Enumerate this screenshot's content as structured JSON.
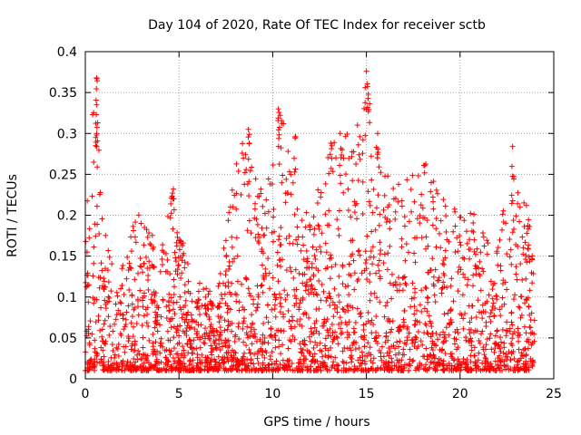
{
  "chart_data": {
    "type": "scatter",
    "title": "Day 104 of 2020, Rate Of TEC Index for receiver sctb",
    "xlabel": "GPS time / hours",
    "ylabel": "ROTI / TECUs",
    "xlim": [
      0,
      25
    ],
    "ylim": [
      0,
      0.4
    ],
    "xticks": [
      0,
      5,
      10,
      15,
      20,
      25
    ],
    "yticks": [
      0,
      0.05,
      0.1,
      0.15,
      0.2,
      0.25,
      0.3,
      0.35,
      0.4
    ],
    "xtick_labels": [
      "0",
      "5",
      "10",
      "15",
      "20",
      "25"
    ],
    "ytick_labels": [
      "0",
      "0.05",
      "0.1",
      "0.15",
      "0.2",
      "0.25",
      "0.3",
      "0.35",
      "0.4"
    ],
    "grid": true,
    "marker": "plus",
    "colors": {
      "series": "#ff0000",
      "grid": "#a0a0a0"
    },
    "series": [
      {
        "values_description": "dense ROTI samples per satellite, approx range",
        "x_range": [
          0,
          24
        ],
        "envelope": [
          {
            "x": 0.0,
            "y_low": 0.01,
            "y_high": 0.18
          },
          {
            "x": 0.5,
            "y_low": 0.01,
            "y_high": 0.37
          },
          {
            "x": 1.0,
            "y_low": 0.01,
            "y_high": 0.18
          },
          {
            "x": 2.0,
            "y_low": 0.01,
            "y_high": 0.16
          },
          {
            "x": 3.0,
            "y_low": 0.01,
            "y_high": 0.21
          },
          {
            "x": 4.0,
            "y_low": 0.01,
            "y_high": 0.15
          },
          {
            "x": 4.6,
            "y_low": 0.01,
            "y_high": 0.23
          },
          {
            "x": 5.0,
            "y_low": 0.01,
            "y_high": 0.18
          },
          {
            "x": 6.0,
            "y_low": 0.01,
            "y_high": 0.12
          },
          {
            "x": 7.0,
            "y_low": 0.01,
            "y_high": 0.1
          },
          {
            "x": 8.0,
            "y_low": 0.01,
            "y_high": 0.26
          },
          {
            "x": 8.6,
            "y_low": 0.01,
            "y_high": 0.31
          },
          {
            "x": 9.5,
            "y_low": 0.01,
            "y_high": 0.22
          },
          {
            "x": 10.3,
            "y_low": 0.01,
            "y_high": 0.33
          },
          {
            "x": 11.0,
            "y_low": 0.01,
            "y_high": 0.3
          },
          {
            "x": 12.0,
            "y_low": 0.01,
            "y_high": 0.19
          },
          {
            "x": 13.0,
            "y_low": 0.01,
            "y_high": 0.29
          },
          {
            "x": 13.7,
            "y_low": 0.01,
            "y_high": 0.3
          },
          {
            "x": 15.0,
            "y_low": 0.01,
            "y_high": 0.37
          },
          {
            "x": 16.0,
            "y_low": 0.01,
            "y_high": 0.28
          },
          {
            "x": 17.0,
            "y_low": 0.01,
            "y_high": 0.24
          },
          {
            "x": 18.0,
            "y_low": 0.01,
            "y_high": 0.27
          },
          {
            "x": 19.0,
            "y_low": 0.01,
            "y_high": 0.23
          },
          {
            "x": 20.0,
            "y_low": 0.01,
            "y_high": 0.2
          },
          {
            "x": 21.0,
            "y_low": 0.01,
            "y_high": 0.22
          },
          {
            "x": 22.0,
            "y_low": 0.01,
            "y_high": 0.16
          },
          {
            "x": 22.8,
            "y_low": 0.01,
            "y_high": 0.28
          },
          {
            "x": 24.0,
            "y_low": 0.01,
            "y_high": 0.17
          }
        ],
        "peaks": [
          {
            "x": 0.6,
            "y": 0.368
          },
          {
            "x": 0.6,
            "y": 0.335
          },
          {
            "x": 0.6,
            "y": 0.298
          },
          {
            "x": 4.7,
            "y": 0.232
          },
          {
            "x": 8.7,
            "y": 0.305
          },
          {
            "x": 10.3,
            "y": 0.33
          },
          {
            "x": 11.2,
            "y": 0.296
          },
          {
            "x": 13.1,
            "y": 0.288
          },
          {
            "x": 13.6,
            "y": 0.3
          },
          {
            "x": 15.0,
            "y": 0.376
          },
          {
            "x": 15.1,
            "y": 0.348
          },
          {
            "x": 15.6,
            "y": 0.3
          },
          {
            "x": 22.8,
            "y": 0.284
          }
        ]
      }
    ]
  }
}
